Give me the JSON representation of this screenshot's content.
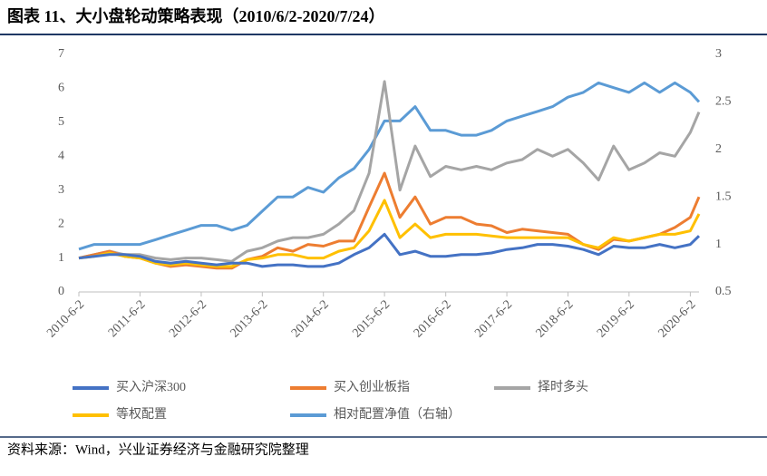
{
  "chart_data": {
    "type": "line",
    "title": "图表 11、大小盘轮动策略表现（2010/6/2-2020/7/24）",
    "source": "资料来源：Wind，兴业证券经济与金融研究院整理",
    "x": [
      "2010-6-2",
      "2010-9-2",
      "2010-12-2",
      "2011-3-2",
      "2011-6-2",
      "2011-9-2",
      "2011-12-2",
      "2012-3-2",
      "2012-6-2",
      "2012-9-2",
      "2012-12-2",
      "2013-3-2",
      "2013-6-2",
      "2013-9-2",
      "2013-12-2",
      "2014-3-2",
      "2014-6-2",
      "2014-9-2",
      "2014-12-2",
      "2015-3-2",
      "2015-6-2",
      "2015-9-2",
      "2015-12-2",
      "2016-3-2",
      "2016-6-2",
      "2016-9-2",
      "2016-12-2",
      "2017-3-2",
      "2017-6-2",
      "2017-9-2",
      "2017-12-2",
      "2018-3-2",
      "2018-6-2",
      "2018-9-2",
      "2018-12-2",
      "2019-3-2",
      "2019-6-2",
      "2019-9-2",
      "2019-12-2",
      "2020-3-2",
      "2020-6-2",
      "2020-7-24"
    ],
    "xlim": [
      "2010-6-2",
      "2020-7-24"
    ],
    "xticks": [
      "2010-6-2",
      "2011-6-2",
      "2012-6-2",
      "2013-6-2",
      "2014-6-2",
      "2015-6-2",
      "2016-6-2",
      "2017-6-2",
      "2018-6-2",
      "2019-6-2",
      "2020-6-2"
    ],
    "ylim": [
      0,
      7
    ],
    "yticks": [
      0,
      1,
      2,
      3,
      4,
      5,
      6,
      7
    ],
    "y2lim": [
      0.5,
      3
    ],
    "y2ticks": [
      0.5,
      1,
      1.5,
      2,
      2.5,
      3
    ],
    "series": [
      {
        "name": "买入沪深300",
        "color": "#4472c4",
        "values": [
          1.0,
          1.05,
          1.1,
          1.1,
          1.05,
          0.9,
          0.85,
          0.9,
          0.85,
          0.8,
          0.85,
          0.85,
          0.75,
          0.8,
          0.8,
          0.75,
          0.75,
          0.85,
          1.1,
          1.3,
          1.7,
          1.1,
          1.2,
          1.05,
          1.05,
          1.1,
          1.1,
          1.15,
          1.25,
          1.3,
          1.4,
          1.4,
          1.35,
          1.25,
          1.1,
          1.35,
          1.3,
          1.3,
          1.4,
          1.3,
          1.4,
          1.65
        ]
      },
      {
        "name": "买入创业板指",
        "color": "#ed7d31",
        "values": [
          1.0,
          1.1,
          1.2,
          1.05,
          1.0,
          0.85,
          0.75,
          0.8,
          0.75,
          0.7,
          0.7,
          0.95,
          1.05,
          1.3,
          1.2,
          1.4,
          1.35,
          1.5,
          1.5,
          2.5,
          3.5,
          2.2,
          2.8,
          2.0,
          2.2,
          2.2,
          2.0,
          1.95,
          1.75,
          1.85,
          1.8,
          1.75,
          1.7,
          1.4,
          1.25,
          1.55,
          1.5,
          1.6,
          1.7,
          1.9,
          2.2,
          2.8
        ]
      },
      {
        "name": "择时多头",
        "color": "#a5a5a5",
        "values": [
          1.0,
          1.1,
          1.2,
          1.1,
          1.1,
          1.0,
          0.95,
          1.0,
          1.0,
          0.95,
          0.9,
          1.2,
          1.3,
          1.5,
          1.6,
          1.6,
          1.7,
          2.0,
          2.4,
          3.5,
          6.2,
          3.0,
          4.3,
          3.4,
          3.7,
          3.6,
          3.7,
          3.6,
          3.8,
          3.9,
          4.2,
          4.0,
          4.2,
          3.8,
          3.3,
          4.3,
          3.6,
          3.8,
          4.1,
          4.0,
          4.7,
          5.3
        ]
      },
      {
        "name": "等权配置",
        "color": "#ffc000",
        "values": [
          1.0,
          1.05,
          1.15,
          1.05,
          1.0,
          0.85,
          0.8,
          0.85,
          0.8,
          0.75,
          0.75,
          0.95,
          1.0,
          1.1,
          1.1,
          1.0,
          1.0,
          1.2,
          1.3,
          1.8,
          2.7,
          1.6,
          2.0,
          1.6,
          1.7,
          1.7,
          1.7,
          1.65,
          1.6,
          1.6,
          1.6,
          1.6,
          1.6,
          1.4,
          1.3,
          1.6,
          1.5,
          1.6,
          1.7,
          1.7,
          1.8,
          2.3
        ]
      },
      {
        "name": "相对配置净值（右轴）",
        "color": "#5b9bd5",
        "axis": "y2",
        "values": [
          0.95,
          1.0,
          1.0,
          1.0,
          1.0,
          1.05,
          1.1,
          1.15,
          1.2,
          1.2,
          1.15,
          1.2,
          1.35,
          1.5,
          1.5,
          1.6,
          1.55,
          1.7,
          1.8,
          2.0,
          2.3,
          2.3,
          2.45,
          2.2,
          2.2,
          2.15,
          2.15,
          2.2,
          2.3,
          2.35,
          2.4,
          2.45,
          2.55,
          2.6,
          2.7,
          2.65,
          2.6,
          2.7,
          2.6,
          2.7,
          2.6,
          2.5
        ]
      }
    ]
  }
}
